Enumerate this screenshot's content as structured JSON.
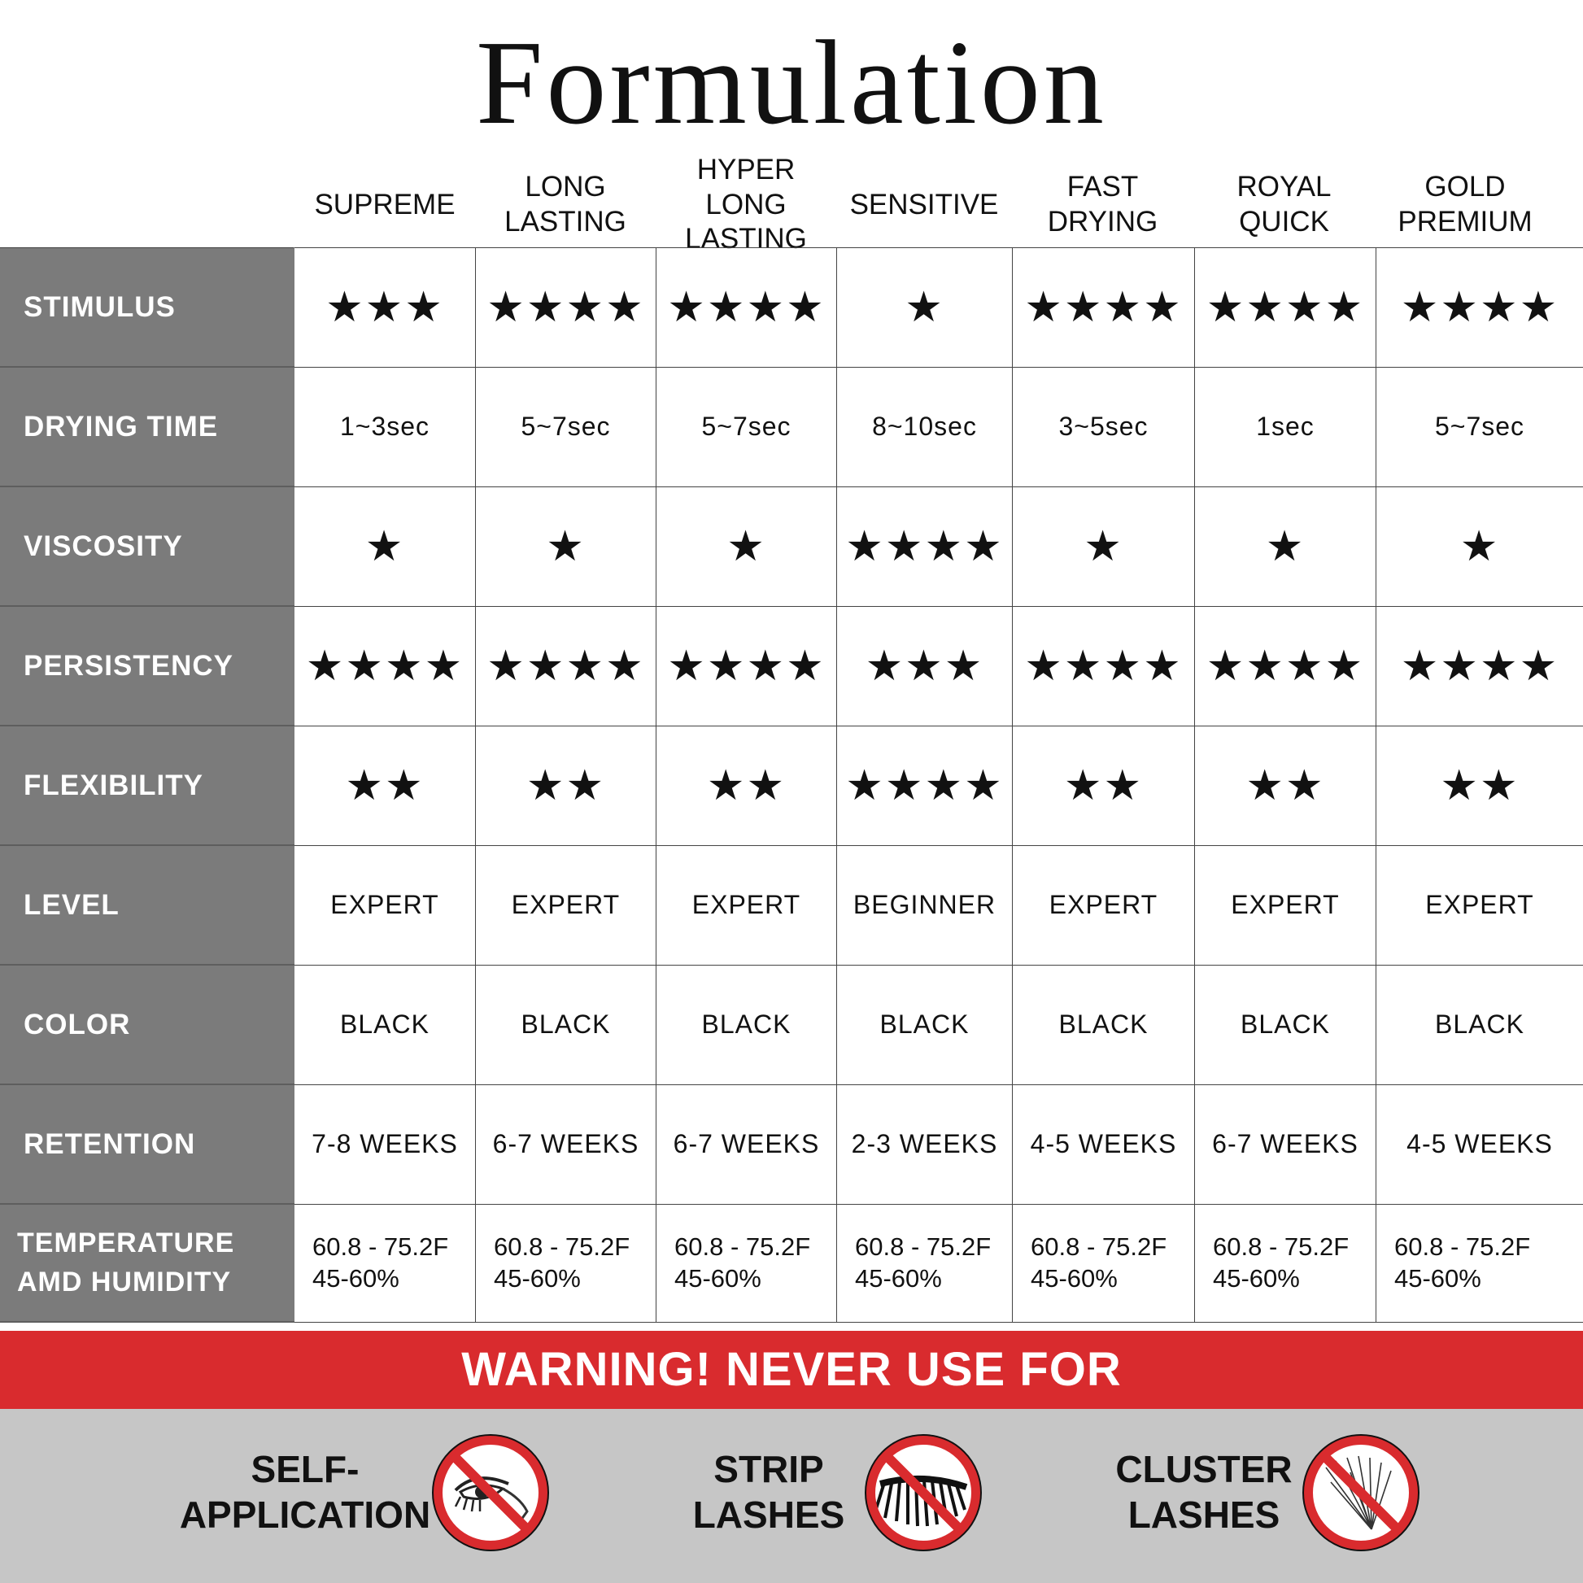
{
  "title": "Formulation",
  "columns": [
    "SUPREME",
    "LONG\nLASTING",
    "HYPER\nLONG LASTING",
    "SENSITIVE",
    "FAST\nDRYING",
    "ROYAL\nQUICK",
    "GOLD\nPREMIUM"
  ],
  "rows": [
    {
      "label": "STIMULUS",
      "type": "stars",
      "values": [
        "★★★",
        "★★★★",
        "★★★★",
        "★",
        "★★★★",
        "★★★★",
        "★★★★"
      ]
    },
    {
      "label": "DRYING TIME",
      "type": "text",
      "values": [
        "1~3sec",
        "5~7sec",
        "5~7sec",
        "8~10sec",
        "3~5sec",
        "1sec",
        "5~7sec"
      ]
    },
    {
      "label": "VISCOSITY",
      "type": "stars",
      "values": [
        "★",
        "★",
        "★",
        "★★★★",
        "★",
        "★",
        "★"
      ]
    },
    {
      "label": "PERSISTENCY",
      "type": "stars",
      "values": [
        "★★★★",
        "★★★★",
        "★★★★",
        "★★★",
        "★★★★",
        "★★★★",
        "★★★★"
      ]
    },
    {
      "label": "FLEXIBILITY",
      "type": "stars",
      "values": [
        "★★",
        "★★",
        "★★",
        "★★★★",
        "★★",
        "★★",
        "★★"
      ]
    },
    {
      "label": "LEVEL",
      "type": "text",
      "values": [
        "EXPERT",
        "EXPERT",
        "EXPERT",
        "BEGINNER",
        "EXPERT",
        "EXPERT",
        "EXPERT"
      ]
    },
    {
      "label": "COLOR",
      "type": "text",
      "values": [
        "BLACK",
        "BLACK",
        "BLACK",
        "BLACK",
        "BLACK",
        "BLACK",
        "BLACK"
      ]
    },
    {
      "label": "RETENTION",
      "type": "text",
      "values": [
        "7-8 WEEKS",
        "6-7 WEEKS",
        "6-7 WEEKS",
        "2-3 WEEKS",
        "4-5 WEEKS",
        "6-7 WEEKS",
        "4-5 WEEKS"
      ]
    }
  ],
  "temperature_row": {
    "label_line1": "TEMPERATURE",
    "label_line2": "AMD HUMIDITY",
    "temperature": "60.8 - 75.2F",
    "humidity": "45-60%"
  },
  "warning": "WARNING! NEVER USE FOR",
  "warning_items": [
    {
      "label": "SELF-\nAPPLICATION",
      "icon": "no-self-application-icon"
    },
    {
      "label": "STRIP\nLASHES",
      "icon": "no-strip-lashes-icon"
    },
    {
      "label": "CLUSTER\nLASHES",
      "icon": "no-cluster-lashes-icon"
    }
  ],
  "colors": {
    "label_bg": "#7b7b7b",
    "warning_bg": "#d92b2e",
    "bottom_bg": "#c6c6c6",
    "prohibit_red": "#d92b2e"
  }
}
